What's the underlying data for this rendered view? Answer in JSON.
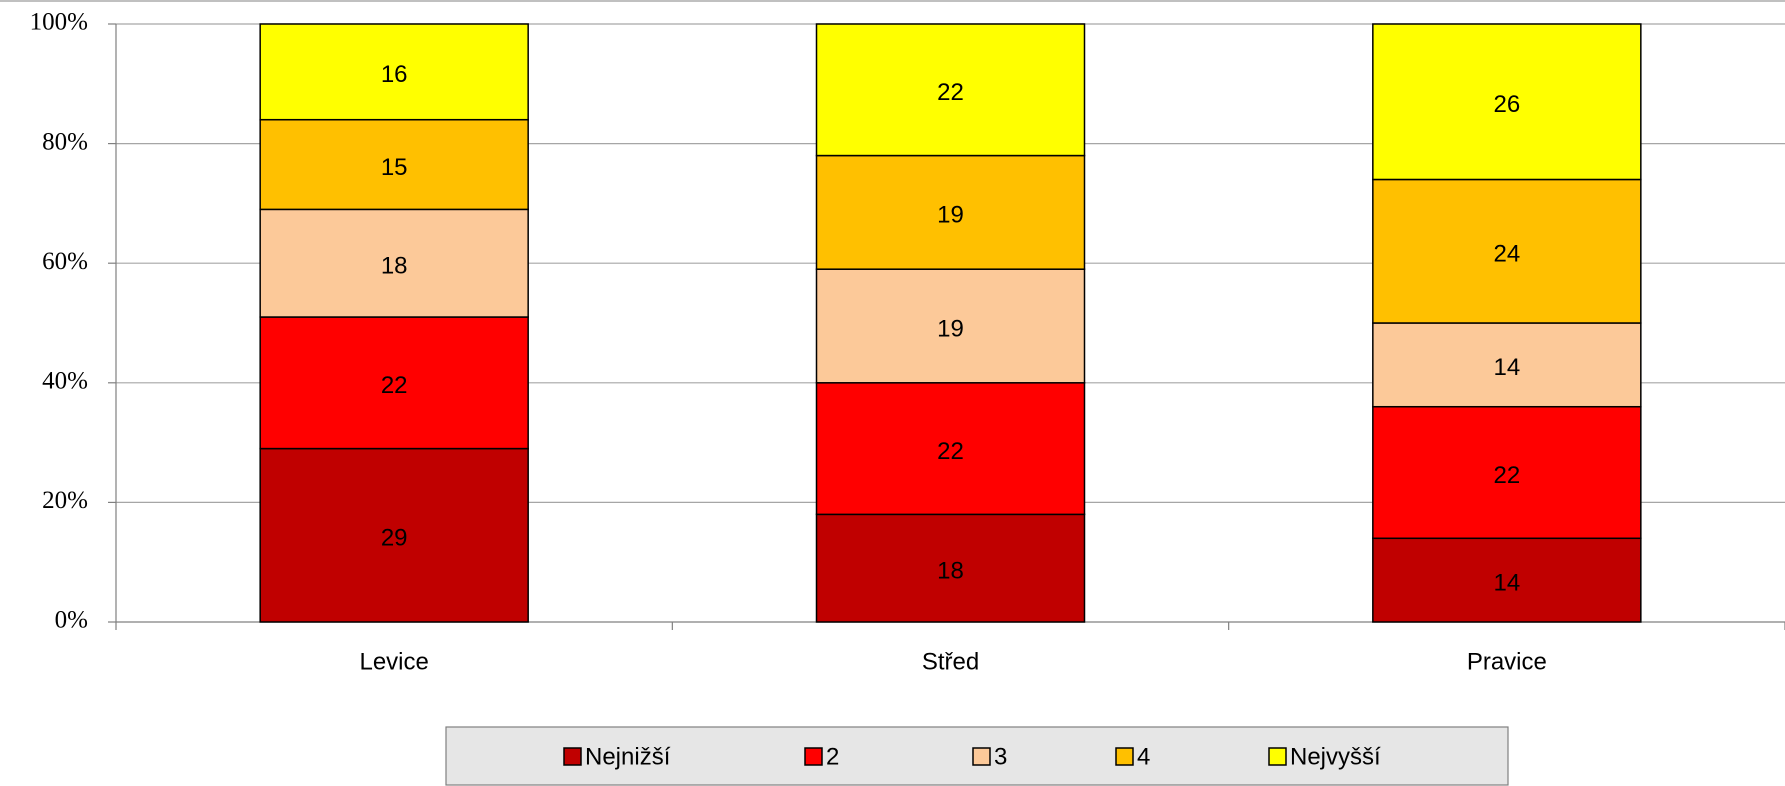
{
  "chart_data": {
    "type": "stacked_bar_100",
    "categories": [
      "Levice",
      "Střed",
      "Pravice"
    ],
    "series": [
      {
        "name": "Nejnižší",
        "color": "#c00000",
        "values": [
          29,
          18,
          14
        ]
      },
      {
        "name": "2",
        "color": "#ff0000",
        "values": [
          22,
          22,
          22
        ]
      },
      {
        "name": "3",
        "color": "#fcc999",
        "values": [
          18,
          19,
          14
        ]
      },
      {
        "name": "4",
        "color": "#ffc000",
        "values": [
          15,
          19,
          24
        ]
      },
      {
        "name": "Nejvyšší",
        "color": "#ffff00",
        "values": [
          16,
          22,
          26
        ]
      }
    ],
    "ylim": [
      0,
      100
    ],
    "yticks": [
      {
        "value": 0,
        "label": "0%"
      },
      {
        "value": 20,
        "label": "20%"
      },
      {
        "value": 40,
        "label": "40%"
      },
      {
        "value": 60,
        "label": "60%"
      },
      {
        "value": 80,
        "label": "80%"
      },
      {
        "value": 100,
        "label": "100%"
      }
    ],
    "grid": true,
    "legend": "bottom"
  }
}
